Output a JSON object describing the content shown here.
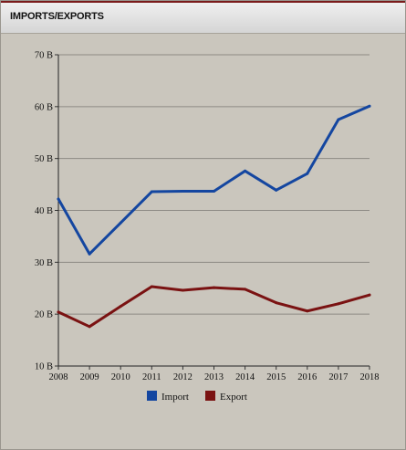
{
  "panel": {
    "title": "IMPORTS/EXPORTS"
  },
  "chart_data": {
    "type": "line",
    "x": [
      "2008",
      "2009",
      "2010",
      "2011",
      "2012",
      "2013",
      "2014",
      "2015",
      "2016",
      "2017",
      "2018"
    ],
    "series": [
      {
        "name": "Import",
        "color": "#1446a0",
        "values": [
          42.2,
          31.6,
          37.6,
          43.6,
          43.7,
          43.7,
          47.6,
          43.9,
          47.1,
          57.5,
          60.1
        ]
      },
      {
        "name": "Export",
        "color": "#7a1212",
        "values": [
          20.4,
          17.6,
          21.5,
          25.3,
          24.6,
          25.1,
          24.8,
          22.2,
          20.6,
          22.0,
          23.7
        ]
      }
    ],
    "ylim": [
      10,
      70
    ],
    "yticks": [
      10,
      20,
      30,
      40,
      50,
      60,
      70
    ],
    "ytick_labels": [
      "10 B",
      "20 B",
      "30 B",
      "40 B",
      "50 B",
      "60 B",
      "70 B"
    ],
    "grid": true,
    "legend_position": "bottom"
  }
}
